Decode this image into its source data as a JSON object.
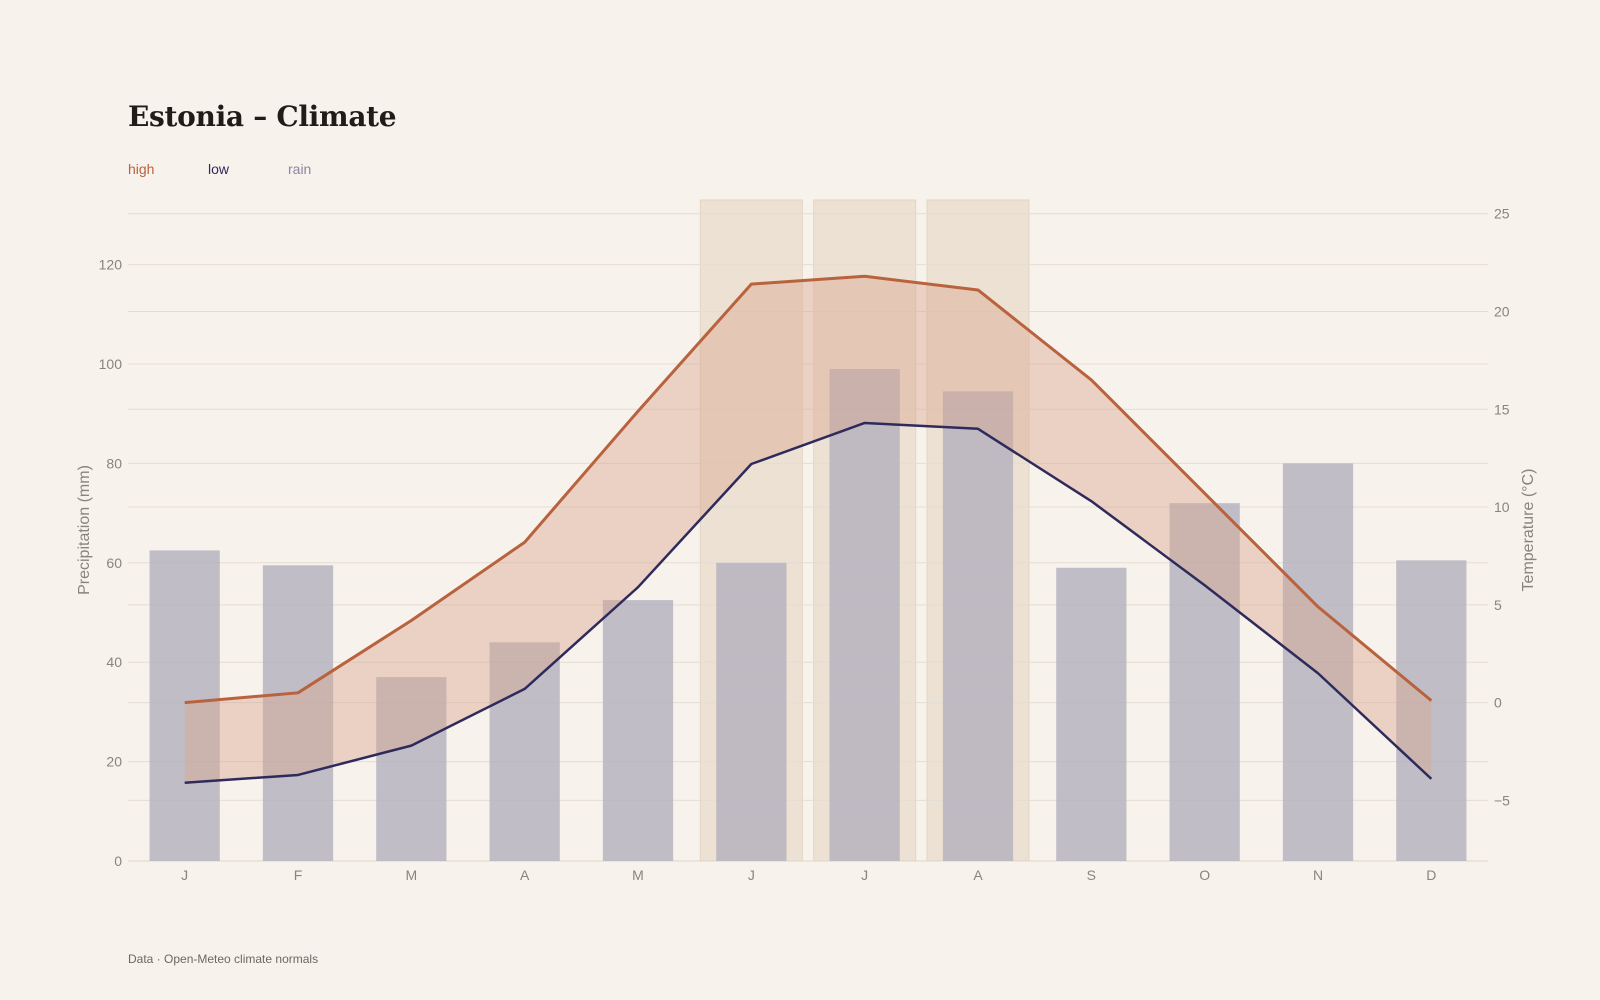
{
  "title": "Estonia – Climate",
  "legend": [
    {
      "label": "high",
      "color": "#b8623e"
    },
    {
      "label": "low",
      "color": "#2e2a5c"
    },
    {
      "label": "rain",
      "color": "#8a86a3"
    }
  ],
  "source": "Data · Open-Meteo climate normals",
  "chart_data": {
    "type": "bar+line",
    "categories": [
      "J",
      "F",
      "M",
      "A",
      "M",
      "J",
      "J",
      "A",
      "S",
      "O",
      "N",
      "D"
    ],
    "highlighted_months": [
      5,
      6,
      7
    ],
    "series": [
      {
        "name": "rain",
        "kind": "bar",
        "axis": "left",
        "values": [
          62.5,
          59.5,
          37,
          44,
          52.5,
          60,
          99,
          94.5,
          59,
          72,
          80,
          60.5
        ]
      },
      {
        "name": "high",
        "kind": "line",
        "axis": "right",
        "values": [
          0.0,
          0.5,
          4.2,
          8.2,
          14.9,
          21.4,
          21.8,
          21.1,
          16.5,
          10.7,
          4.9,
          0.1
        ]
      },
      {
        "name": "low",
        "kind": "line",
        "axis": "right",
        "values": [
          -4.1,
          -3.7,
          -2.2,
          0.7,
          5.9,
          12.2,
          14.3,
          14.0,
          10.3,
          6.0,
          1.5,
          -3.9
        ]
      }
    ],
    "y_left": {
      "label": "Precipitation (mm)",
      "ticks": [
        0,
        20,
        40,
        60,
        80,
        100,
        120
      ],
      "range": [
        0,
        133
      ]
    },
    "y_right": {
      "label": "Temperature (°C)",
      "ticks": [
        -5,
        0,
        5,
        10,
        15,
        20,
        25
      ],
      "tick_labels": [
        "−5",
        "0",
        "5",
        "10",
        "15",
        "20",
        "25"
      ],
      "range": [
        -8.1,
        25.7
      ]
    },
    "colors": {
      "high_line": "#b8623e",
      "low_line": "#2e2a5c",
      "band_fill": "#d9a48c",
      "rain_bar": "#b2aebd",
      "summer_band": "#ece1d2",
      "grid": "#e4ddd4"
    },
    "grid": true
  }
}
